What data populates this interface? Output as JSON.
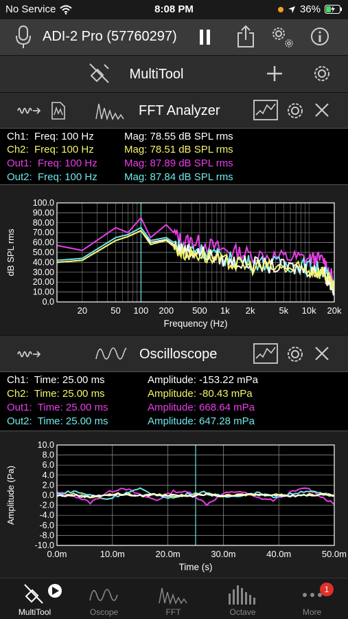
{
  "status": {
    "carrier": "No Service",
    "time": "8:08 PM",
    "battery": "36%"
  },
  "device": {
    "title": "ADI-2 Pro (57760297)"
  },
  "toolbar": {
    "title": "MultiTool"
  },
  "fft": {
    "title": "FFT Analyzer",
    "readouts": [
      {
        "label": "Ch1:  Freq: 100 Hz",
        "mag": "Mag: 78.55 dB SPL rms",
        "color": "#ffffff"
      },
      {
        "label": "Ch2:  Freq: 100 Hz",
        "mag": "Mag: 78.51 dB SPL rms",
        "color": "#f4f46a"
      },
      {
        "label": "Out1:  Freq: 100 Hz",
        "mag": "Mag: 87.89 dB SPL rms",
        "color": "#e83ee8"
      },
      {
        "label": "Out2:  Freq: 100 Hz",
        "mag": "Mag: 87.84 dB SPL rms",
        "color": "#6fe8e8"
      }
    ]
  },
  "scope": {
    "title": "Oscilloscope",
    "readouts": [
      {
        "label": "Ch1:  Time: 25.00 ms",
        "mag": "Amplitude: -153.22 mPa",
        "color": "#ffffff"
      },
      {
        "label": "Ch2:  Time: 25.00 ms",
        "mag": "Amplitude: -80.43 mPa",
        "color": "#f4f46a"
      },
      {
        "label": "Out1:  Time: 25.00 ms",
        "mag": "Amplitude: 668.64 mPa",
        "color": "#e83ee8"
      },
      {
        "label": "Out2:  Time: 25.00 ms",
        "mag": "Amplitude: 647.28 mPa",
        "color": "#6fe8e8"
      }
    ]
  },
  "chart_data": [
    {
      "type": "line",
      "title": "",
      "xlabel": "Frequency (Hz)",
      "ylabel": "dB SPL rms",
      "x_scale": "log",
      "xlim": [
        10,
        20000
      ],
      "ylim": [
        0,
        100
      ],
      "x_ticks": [
        "20",
        "50",
        "100",
        "200",
        "500",
        "1k",
        "2k",
        "5k",
        "10k",
        "20k"
      ],
      "x_tick_values": [
        20,
        50,
        100,
        200,
        500,
        1000,
        2000,
        5000,
        10000,
        20000
      ],
      "y_ticks": [
        "0.0",
        "10.00",
        "20.00",
        "30.00",
        "40.00",
        "50.00",
        "60.00",
        "70.00",
        "80.00",
        "90.00",
        "100.0"
      ],
      "cursor_x": 100,
      "grid": true,
      "series": [
        {
          "color": "#e83ee8",
          "x": [
            10,
            20,
            50,
            70,
            100,
            130,
            200,
            300,
            500,
            1000,
            2000,
            5000,
            10000,
            15000,
            20000
          ],
          "y": [
            57,
            52,
            75,
            70,
            85,
            65,
            78,
            62,
            60,
            52,
            48,
            45,
            44,
            42,
            20
          ]
        },
        {
          "color": "#6fe8e8",
          "x": [
            10,
            20,
            50,
            70,
            100,
            130,
            200,
            300,
            500,
            1000,
            2000,
            5000,
            10000,
            15000,
            20000
          ],
          "y": [
            42,
            44,
            65,
            68,
            75,
            62,
            65,
            55,
            53,
            44,
            40,
            38,
            36,
            32,
            15
          ]
        },
        {
          "color": "#ffffff",
          "x": [
            10,
            20,
            50,
            70,
            100,
            130,
            200,
            300,
            500,
            1000,
            2000,
            5000,
            10000,
            15000,
            20000
          ],
          "y": [
            40,
            42,
            62,
            66,
            72,
            60,
            63,
            53,
            50,
            42,
            38,
            35,
            33,
            30,
            12
          ]
        },
        {
          "color": "#f4f46a",
          "x": [
            10,
            20,
            50,
            70,
            100,
            130,
            200,
            300,
            500,
            1000,
            2000,
            5000,
            10000,
            15000,
            20000
          ],
          "y": [
            40,
            42,
            62,
            66,
            72,
            58,
            62,
            50,
            48,
            40,
            36,
            34,
            32,
            30,
            12
          ]
        }
      ]
    },
    {
      "type": "line",
      "title": "",
      "xlabel": "Time (s)",
      "ylabel": "Amplitude (Pa)",
      "xlim": [
        0,
        50
      ],
      "ylim": [
        -10,
        10
      ],
      "x_ticks": [
        "0.0m",
        "10.0m",
        "20.0m",
        "30.0m",
        "40.0m",
        "50.0m"
      ],
      "y_ticks": [
        "-10.0",
        "-8.0",
        "-6.0",
        "-4.0",
        "-2.0",
        "0.0",
        "2.0",
        "4.0",
        "6.0",
        "8.0",
        "10.0"
      ],
      "cursor_x": 25,
      "grid": true,
      "series": [
        {
          "color": "#e83ee8",
          "x": [
            0,
            3,
            6,
            9,
            12,
            15,
            18,
            21,
            24,
            27,
            30,
            33,
            36,
            39,
            42,
            45,
            48,
            50
          ],
          "y": [
            0.5,
            0,
            -1.5,
            0.5,
            1.5,
            0,
            -1.0,
            0.8,
            0.5,
            -1.8,
            0.3,
            0.8,
            -0.5,
            -1.0,
            0.5,
            1.5,
            -0.5,
            -1.8
          ]
        },
        {
          "color": "#6fe8e8",
          "x": [
            0,
            3,
            6,
            9,
            12,
            15,
            18,
            21,
            24,
            27,
            30,
            33,
            36,
            39,
            42,
            45,
            48,
            50
          ],
          "y": [
            0.2,
            0.8,
            0,
            -0.8,
            0.3,
            1.2,
            0,
            -0.6,
            0.4,
            0.6,
            -0.4,
            0,
            0.5,
            -0.3,
            0.2,
            0.9,
            0.2,
            0
          ]
        },
        {
          "color": "#f4f46a",
          "x": [
            0,
            3,
            6,
            9,
            12,
            15,
            18,
            21,
            24,
            27,
            30,
            33,
            36,
            39,
            42,
            45,
            48,
            50
          ],
          "y": [
            -0.2,
            0.2,
            -0.4,
            0.1,
            0.3,
            -0.2,
            0.2,
            -0.1,
            -0.1,
            0.2,
            -0.2,
            0.1,
            0,
            0.2,
            -0.1,
            0.1,
            0.2,
            -0.1
          ]
        },
        {
          "color": "#ffffff",
          "x": [
            0,
            3,
            6,
            9,
            12,
            15,
            18,
            21,
            24,
            27,
            30,
            33,
            36,
            39,
            42,
            45,
            48,
            50
          ],
          "y": [
            -0.1,
            0,
            -0.3,
            0.1,
            0.2,
            -0.2,
            0.1,
            -0.1,
            -0.15,
            0.1,
            -0.2,
            0,
            0.1,
            0.1,
            -0.1,
            0,
            0.1,
            -0.1
          ]
        }
      ]
    }
  ],
  "tabs": [
    {
      "label": "MultiTool",
      "icon": "multitool-icon",
      "active": true
    },
    {
      "label": "Oscope",
      "icon": "sine-wave-icon",
      "active": false
    },
    {
      "label": "FFT",
      "icon": "fft-icon",
      "active": false
    },
    {
      "label": "Octave",
      "icon": "octave-bars-icon",
      "active": false
    },
    {
      "label": "More",
      "icon": "more-icon",
      "active": false,
      "badge": "1"
    }
  ]
}
